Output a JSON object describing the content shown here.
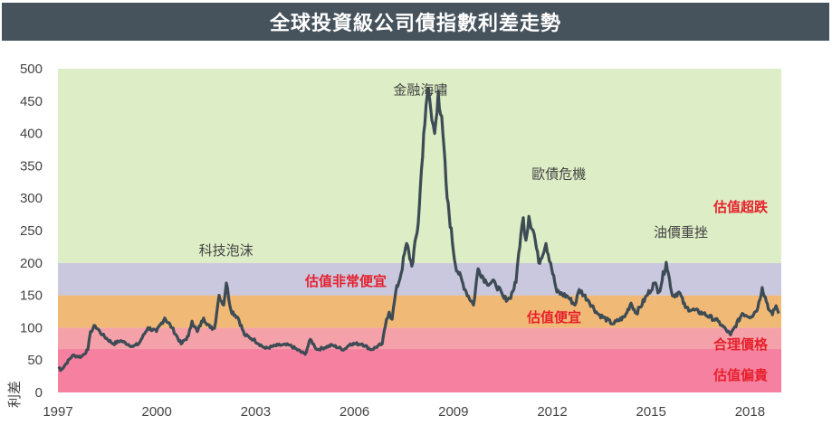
{
  "chart_data": {
    "type": "line",
    "title": "全球投資級公司債指數利差走勢",
    "xlabel": "",
    "ylabel": "利差",
    "xlim": [
      1997,
      2018.9
    ],
    "ylim": [
      0,
      500
    ],
    "x_ticks": [
      "1997",
      "2000",
      "2003",
      "2006",
      "2009",
      "2012",
      "2015",
      "2018"
    ],
    "y_ticks": [
      "0",
      "50",
      "100",
      "150",
      "200",
      "250",
      "300",
      "350",
      "400",
      "450",
      "500"
    ],
    "bands": [
      {
        "label": "估值偏貴",
        "from": 0,
        "to": 67,
        "color": "#f580a0"
      },
      {
        "label": "合理價格",
        "from": 67,
        "to": 100,
        "color": "#f5a1a9"
      },
      {
        "label": "估值便宜",
        "from": 100,
        "to": 150,
        "color": "#f0b975"
      },
      {
        "label": "估值非常便宜",
        "from": 150,
        "to": 200,
        "color": "#c9c8de"
      },
      {
        "label": "估值超跌",
        "from": 200,
        "to": 500,
        "color": "#ddedc5"
      }
    ],
    "annotations": [
      {
        "label": "科技泡沫",
        "x": 2002.1,
        "y": 212
      },
      {
        "label": "金融海嘯",
        "x": 2008.0,
        "y": 460
      },
      {
        "label": "歐債危機",
        "x": 2012.2,
        "y": 330
      },
      {
        "label": "油價重挫",
        "x": 2015.9,
        "y": 240
      }
    ],
    "line_color": "#3d4b55",
    "series": [
      {
        "name": "利差",
        "x": [
          1997.03,
          1997.08,
          1997.44,
          1997.71,
          1997.91,
          1997.99,
          1998.13,
          1998.35,
          1998.68,
          1998.9,
          1999.28,
          1999.45,
          1999.73,
          1999.99,
          2000.24,
          2000.46,
          2000.74,
          2000.96,
          2001.07,
          2001.23,
          2001.42,
          2001.62,
          2001.75,
          2001.89,
          2002.03,
          2002.11,
          2002.25,
          2002.47,
          2002.66,
          2002.93,
          2003.29,
          2003.68,
          2004.03,
          2004.5,
          2004.66,
          2004.86,
          2005.32,
          2005.68,
          2005.87,
          2006.23,
          2006.51,
          2006.84,
          2006.97,
          2007.05,
          2007.14,
          2007.25,
          2007.41,
          2007.52,
          2007.58,
          2007.74,
          2007.93,
          2008.1,
          2008.24,
          2008.35,
          2008.43,
          2008.54,
          2008.68,
          2008.81,
          2009.06,
          2009.39,
          2009.61,
          2009.75,
          2010.0,
          2010.27,
          2010.54,
          2010.71,
          2010.9,
          2010.98,
          2011.12,
          2011.2,
          2011.29,
          2011.45,
          2011.59,
          2011.81,
          2011.95,
          2012.14,
          2012.47,
          2012.69,
          2012.82,
          2013.1,
          2013.37,
          2013.84,
          2014.2,
          2014.39,
          2014.55,
          2015.1,
          2015.24,
          2015.46,
          2015.65,
          2015.85,
          2016.04,
          2016.59,
          2017.03,
          2017.41,
          2017.77,
          2018.04,
          2018.24,
          2018.37,
          2018.59,
          2018.68,
          2018.79,
          2018.87
        ],
        "values": [
          40,
          34,
          57,
          55,
          66,
          94,
          103,
          89,
          75,
          80,
          71,
          75,
          100,
          94,
          115,
          100,
          75,
          87,
          110,
          94,
          115,
          100,
          99,
          150,
          135,
          169,
          127,
          115,
          89,
          82,
          68,
          73,
          73,
          59,
          82,
          66,
          73,
          66,
          75,
          75,
          66,
          75,
          113,
          124,
          113,
          155,
          183,
          215,
          230,
          195,
          260,
          400,
          470,
          420,
          400,
          465,
          400,
          300,
          197,
          155,
          135,
          191,
          170,
          169,
          145,
          145,
          170,
          215,
          270,
          235,
          272,
          245,
          200,
          230,
          200,
          155,
          148,
          135,
          159,
          142,
          122,
          106,
          117,
          138,
          122,
          169,
          155,
          201,
          149,
          155,
          131,
          122,
          110,
          89,
          122,
          117,
          131,
          162,
          127,
          120,
          134,
          122
        ]
      }
    ]
  }
}
